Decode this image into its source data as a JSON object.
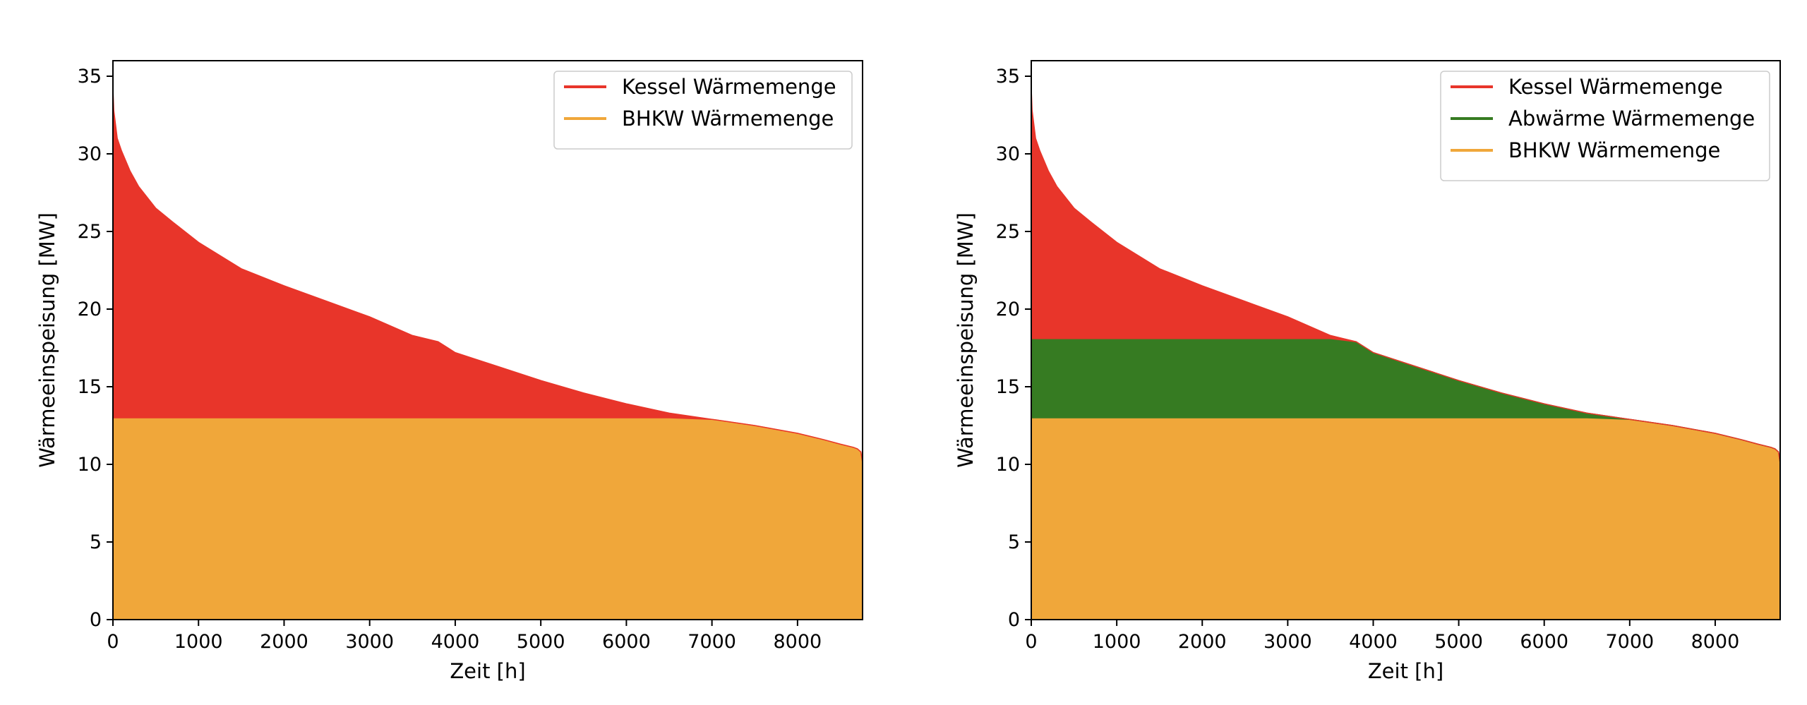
{
  "chart_data": [
    {
      "type": "area",
      "stacked": true,
      "title": "",
      "xlabel": "Zeit [h]",
      "ylabel": "Wärmeeinspeisung [MW]",
      "xlim": [
        0,
        8760
      ],
      "ylim": [
        0,
        36
      ],
      "xticks": [
        0,
        1000,
        2000,
        3000,
        4000,
        5000,
        6000,
        7000,
        8000
      ],
      "yticks": [
        0,
        5,
        10,
        15,
        20,
        25,
        30,
        35
      ],
      "grid": false,
      "legend_position": "top-right",
      "x": [
        0,
        10,
        50,
        100,
        200,
        300,
        500,
        700,
        1000,
        1500,
        2000,
        2500,
        3000,
        3500,
        3800,
        4000,
        4500,
        5000,
        5500,
        6000,
        6500,
        7000,
        7500,
        8000,
        8300,
        8500,
        8650,
        8700,
        8740,
        8760
      ],
      "load_curve_total": [
        34.2,
        32.8,
        31.0,
        30.2,
        28.9,
        27.9,
        26.5,
        25.6,
        24.3,
        22.6,
        21.5,
        20.5,
        19.5,
        18.3,
        17.9,
        17.2,
        16.3,
        15.4,
        14.6,
        13.9,
        13.3,
        12.9,
        12.5,
        12.0,
        11.6,
        11.3,
        11.1,
        11.0,
        10.8,
        10.1
      ],
      "series": [
        {
          "name": "Kessel Wärmemenge",
          "color": "#e8352a",
          "lower": [
            13.0,
            13.0,
            13.0,
            13.0,
            13.0,
            13.0,
            13.0,
            13.0,
            13.0,
            13.0,
            13.0,
            13.0,
            13.0,
            13.0,
            13.0,
            13.0,
            13.0,
            13.0,
            13.0,
            13.0,
            13.0,
            12.9,
            12.5,
            12.0,
            11.6,
            11.3,
            11.1,
            11.0,
            10.8,
            10.1
          ],
          "upper": [
            34.2,
            32.8,
            31.0,
            30.2,
            28.9,
            27.9,
            26.5,
            25.6,
            24.3,
            22.6,
            21.5,
            20.5,
            19.5,
            18.3,
            17.9,
            17.2,
            16.3,
            15.4,
            14.6,
            13.9,
            13.3,
            12.9,
            12.5,
            12.0,
            11.6,
            11.3,
            11.1,
            11.0,
            10.8,
            10.1
          ]
        },
        {
          "name": "BHKW Wärmemenge",
          "color": "#f0a73a",
          "lower": [
            0,
            0,
            0,
            0,
            0,
            0,
            0,
            0,
            0,
            0,
            0,
            0,
            0,
            0,
            0,
            0,
            0,
            0,
            0,
            0,
            0,
            0,
            0,
            0,
            0,
            0,
            0,
            0,
            0,
            0
          ],
          "upper": [
            13.0,
            13.0,
            13.0,
            13.0,
            13.0,
            13.0,
            13.0,
            13.0,
            13.0,
            13.0,
            13.0,
            13.0,
            13.0,
            13.0,
            13.0,
            13.0,
            13.0,
            13.0,
            13.0,
            13.0,
            13.0,
            12.9,
            12.5,
            12.0,
            11.6,
            11.3,
            11.1,
            11.0,
            10.8,
            10.1
          ]
        }
      ]
    },
    {
      "type": "area",
      "stacked": true,
      "title": "",
      "xlabel": "Zeit [h]",
      "ylabel": "Wärmeeinspeisung [MW]",
      "xlim": [
        0,
        8760
      ],
      "ylim": [
        0,
        36
      ],
      "xticks": [
        0,
        1000,
        2000,
        3000,
        4000,
        5000,
        6000,
        7000,
        8000
      ],
      "yticks": [
        0,
        5,
        10,
        15,
        20,
        25,
        30,
        35
      ],
      "grid": false,
      "legend_position": "top-right",
      "x": [
        0,
        10,
        50,
        100,
        200,
        300,
        500,
        700,
        1000,
        1500,
        2000,
        2500,
        3000,
        3500,
        3800,
        4000,
        4500,
        5000,
        5500,
        6000,
        6500,
        7000,
        7500,
        8000,
        8300,
        8500,
        8650,
        8700,
        8740,
        8760
      ],
      "load_curve_total": [
        34.2,
        32.8,
        31.0,
        30.2,
        28.9,
        27.9,
        26.5,
        25.6,
        24.3,
        22.6,
        21.5,
        20.5,
        19.5,
        18.3,
        17.9,
        17.2,
        16.3,
        15.4,
        14.6,
        13.9,
        13.3,
        12.9,
        12.5,
        12.0,
        11.6,
        11.3,
        11.1,
        11.0,
        10.8,
        10.1
      ],
      "series": [
        {
          "name": "Kessel Wärmemenge",
          "color": "#e8352a",
          "lower": [
            18.1,
            18.1,
            18.1,
            18.1,
            18.1,
            18.1,
            18.1,
            18.1,
            18.1,
            18.1,
            18.1,
            18.1,
            18.1,
            18.1,
            17.9,
            17.2,
            16.3,
            15.4,
            14.6,
            13.9,
            13.3,
            12.9,
            12.5,
            12.0,
            11.6,
            11.3,
            11.1,
            11.0,
            10.8,
            10.1
          ],
          "upper": [
            34.2,
            32.8,
            31.0,
            30.2,
            28.9,
            27.9,
            26.5,
            25.6,
            24.3,
            22.6,
            21.5,
            20.5,
            19.5,
            18.3,
            17.9,
            17.2,
            16.3,
            15.4,
            14.6,
            13.9,
            13.3,
            12.9,
            12.5,
            12.0,
            11.6,
            11.3,
            11.1,
            11.0,
            10.8,
            10.1
          ]
        },
        {
          "name": "Abwärme Wärmemenge",
          "color": "#367b22",
          "lower": [
            13.0,
            13.0,
            13.0,
            13.0,
            13.0,
            13.0,
            13.0,
            13.0,
            13.0,
            13.0,
            13.0,
            13.0,
            13.0,
            13.0,
            13.0,
            13.0,
            13.0,
            13.0,
            13.0,
            13.0,
            13.0,
            12.9,
            12.5,
            12.0,
            11.6,
            11.3,
            11.1,
            11.0,
            10.8,
            10.1
          ],
          "upper": [
            18.1,
            18.1,
            18.1,
            18.1,
            18.1,
            18.1,
            18.1,
            18.1,
            18.1,
            18.1,
            18.1,
            18.1,
            18.1,
            18.1,
            17.9,
            17.2,
            16.3,
            15.4,
            14.6,
            13.9,
            13.3,
            12.9,
            12.5,
            12.0,
            11.6,
            11.3,
            11.1,
            11.0,
            10.8,
            10.1
          ]
        },
        {
          "name": "BHKW Wärmemenge",
          "color": "#f0a73a",
          "lower": [
            0,
            0,
            0,
            0,
            0,
            0,
            0,
            0,
            0,
            0,
            0,
            0,
            0,
            0,
            0,
            0,
            0,
            0,
            0,
            0,
            0,
            0,
            0,
            0,
            0,
            0,
            0,
            0,
            0,
            0
          ],
          "upper": [
            13.0,
            13.0,
            13.0,
            13.0,
            13.0,
            13.0,
            13.0,
            13.0,
            13.0,
            13.0,
            13.0,
            13.0,
            13.0,
            13.0,
            13.0,
            13.0,
            13.0,
            13.0,
            13.0,
            13.0,
            13.0,
            12.9,
            12.5,
            12.0,
            11.6,
            11.3,
            11.1,
            11.0,
            10.8,
            10.1
          ]
        }
      ]
    }
  ]
}
